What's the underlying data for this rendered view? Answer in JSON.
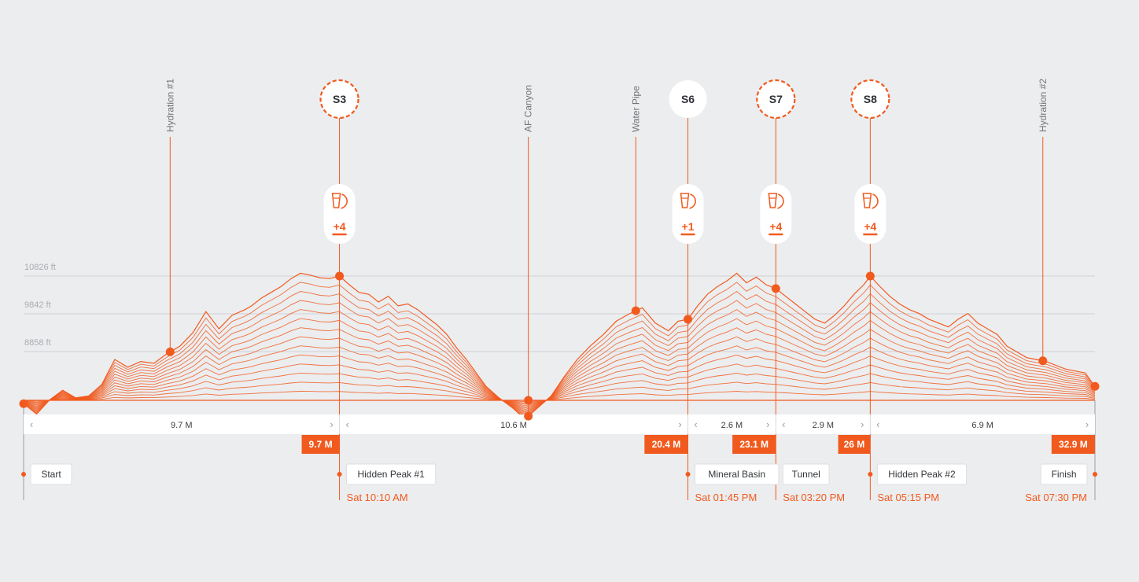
{
  "colors": {
    "accent": "#f15a1e",
    "background": "#ecedef",
    "grid": "#cfd1d4",
    "text": "#33363a"
  },
  "chart_data": {
    "type": "area",
    "title": "",
    "xlabel": "",
    "ylabel": "",
    "x_unit": "M",
    "y_unit": "ft",
    "xlim": [
      0,
      32.9
    ],
    "ylim": [
      7000,
      11200
    ],
    "y_ticks": [
      "10826 ft",
      "9842 ft",
      "8858 ft"
    ],
    "y_tick_values": [
      10826,
      9842,
      8858
    ],
    "grid": true,
    "profile": {
      "x": [
        0,
        0.4,
        0.8,
        1.2,
        1.6,
        2.0,
        2.4,
        2.8,
        3.2,
        3.6,
        4.0,
        4.4,
        4.8,
        5.2,
        5.6,
        6.0,
        6.4,
        6.8,
        7.0,
        7.3,
        7.6,
        7.9,
        8.2,
        8.5,
        8.8,
        9.1,
        9.4,
        9.7,
        10.0,
        10.3,
        10.6,
        10.9,
        11.2,
        11.5,
        11.8,
        12.1,
        12.4,
        12.7,
        13.0,
        13.3,
        13.6,
        13.9,
        14.2,
        14.6,
        15.0,
        15.4,
        15.8,
        16.2,
        16.6,
        17.0,
        17.4,
        17.8,
        18.2,
        18.6,
        19.0,
        19.4,
        19.8,
        20.1,
        20.4,
        20.7,
        21.0,
        21.3,
        21.6,
        21.9,
        22.2,
        22.5,
        22.8,
        23.1,
        23.4,
        23.7,
        24.0,
        24.3,
        24.6,
        24.9,
        25.2,
        25.5,
        25.8,
        26.0,
        26.3,
        26.6,
        26.9,
        27.2,
        27.5,
        27.8,
        28.1,
        28.4,
        28.7,
        29.0,
        29.3,
        29.6,
        29.9,
        30.2,
        30.5,
        30.8,
        31.1,
        31.4,
        31.7,
        32.0,
        32.3,
        32.6,
        32.9
      ],
      "y": [
        7500,
        7230,
        7600,
        7850,
        7650,
        7700,
        8000,
        8650,
        8450,
        8600,
        8550,
        8800,
        9000,
        9350,
        9900,
        9450,
        9800,
        9950,
        10050,
        10250,
        10400,
        10550,
        10750,
        10900,
        10850,
        10780,
        10760,
        10826,
        10600,
        10400,
        10350,
        10150,
        10300,
        10050,
        10100,
        9950,
        9750,
        9550,
        9300,
        8950,
        8650,
        8300,
        7950,
        7650,
        7400,
        7100,
        7400,
        7700,
        8200,
        8650,
        9000,
        9300,
        9650,
        9842,
        10000,
        9600,
        9400,
        9650,
        9700,
        10050,
        10350,
        10550,
        10700,
        10900,
        10650,
        10800,
        10600,
        10500,
        10300,
        10100,
        9900,
        9700,
        9600,
        9800,
        10050,
        10350,
        10600,
        10826,
        10550,
        10300,
        10100,
        9950,
        9850,
        9700,
        9600,
        9500,
        9700,
        9850,
        9600,
        9450,
        9300,
        9000,
        8850,
        8700,
        8650,
        8600,
        8500,
        8400,
        8350,
        8300,
        7950
      ]
    },
    "segments": [
      {
        "from": 0,
        "to": 9.7,
        "label": "9.7 M"
      },
      {
        "from": 9.7,
        "to": 20.4,
        "label": "10.6 M"
      },
      {
        "from": 20.4,
        "to": 23.1,
        "label": "2.6 M"
      },
      {
        "from": 23.1,
        "to": 26.0,
        "label": "2.9 M"
      },
      {
        "from": 26.0,
        "to": 32.9,
        "label": "6.9 M"
      }
    ],
    "cumulative_markers": [
      {
        "at": 9.7,
        "label": "9.7 M"
      },
      {
        "at": 20.4,
        "label": "20.4 M"
      },
      {
        "at": 23.1,
        "label": "23.1 M"
      },
      {
        "at": 26.0,
        "label": "26 M"
      },
      {
        "at": 32.9,
        "label": "32.9 M"
      }
    ],
    "waypoints": [
      {
        "at": 0,
        "name": "Start",
        "time": ""
      },
      {
        "at": 9.7,
        "name": "Hidden Peak #1",
        "time": "Sat 10:10 AM"
      },
      {
        "at": 20.4,
        "name": "Mineral Basin",
        "time": "Sat 01:45 PM"
      },
      {
        "at": 23.1,
        "name": "Tunnel",
        "time": "Sat 03:20 PM"
      },
      {
        "at": 26.0,
        "name": "Hidden Peak #2",
        "time": "Sat 05:15 PM"
      },
      {
        "at": 32.9,
        "name": "Finish",
        "time": "Sat 07:30 PM"
      }
    ],
    "aid_points": [
      {
        "at": 4.5,
        "label": "Hydration #1"
      },
      {
        "at": 15.5,
        "label": "AF Canyon"
      },
      {
        "at": 18.8,
        "label": "Water Pipe"
      },
      {
        "at": 31.3,
        "label": "Hydration #2"
      }
    ],
    "stations": [
      {
        "at": 9.7,
        "code": "S3",
        "style": "dashed",
        "count": "+4"
      },
      {
        "at": 20.4,
        "code": "S6",
        "style": "solid",
        "count": "+1"
      },
      {
        "at": 23.1,
        "code": "S7",
        "style": "dashed",
        "count": "+4"
      },
      {
        "at": 26.0,
        "code": "S8",
        "style": "dashed",
        "count": "+4"
      }
    ]
  }
}
